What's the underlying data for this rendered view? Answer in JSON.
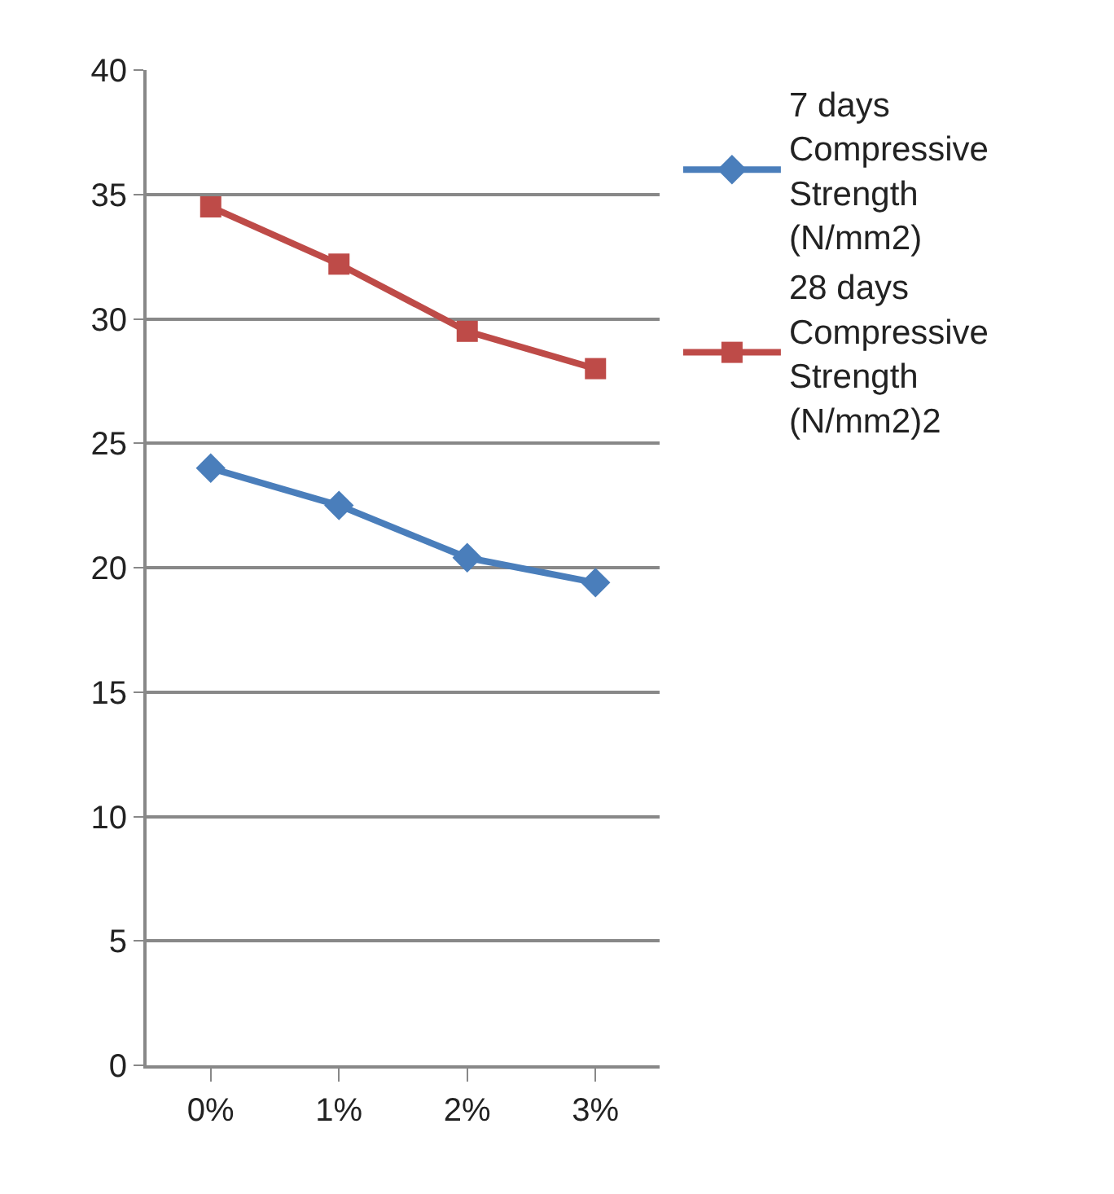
{
  "chart_data": {
    "type": "line",
    "categories": [
      "0%",
      "1%",
      "2%",
      "3%"
    ],
    "series": [
      {
        "name": "7 days Compressive Strength (N/mm2)",
        "color": "#4a7ebb",
        "marker": "diamond",
        "values": [
          24.0,
          22.5,
          20.4,
          19.4
        ]
      },
      {
        "name": "28 days Compressive Strength (N/mm2)2",
        "color": "#be4b48",
        "marker": "square",
        "values": [
          34.5,
          32.2,
          29.5,
          28.0
        ]
      }
    ],
    "ylim": [
      0,
      40
    ],
    "yticks": [
      0,
      5,
      10,
      15,
      20,
      25,
      30,
      35,
      40
    ],
    "grid": "y",
    "legend": "right",
    "line_style": "solid"
  }
}
